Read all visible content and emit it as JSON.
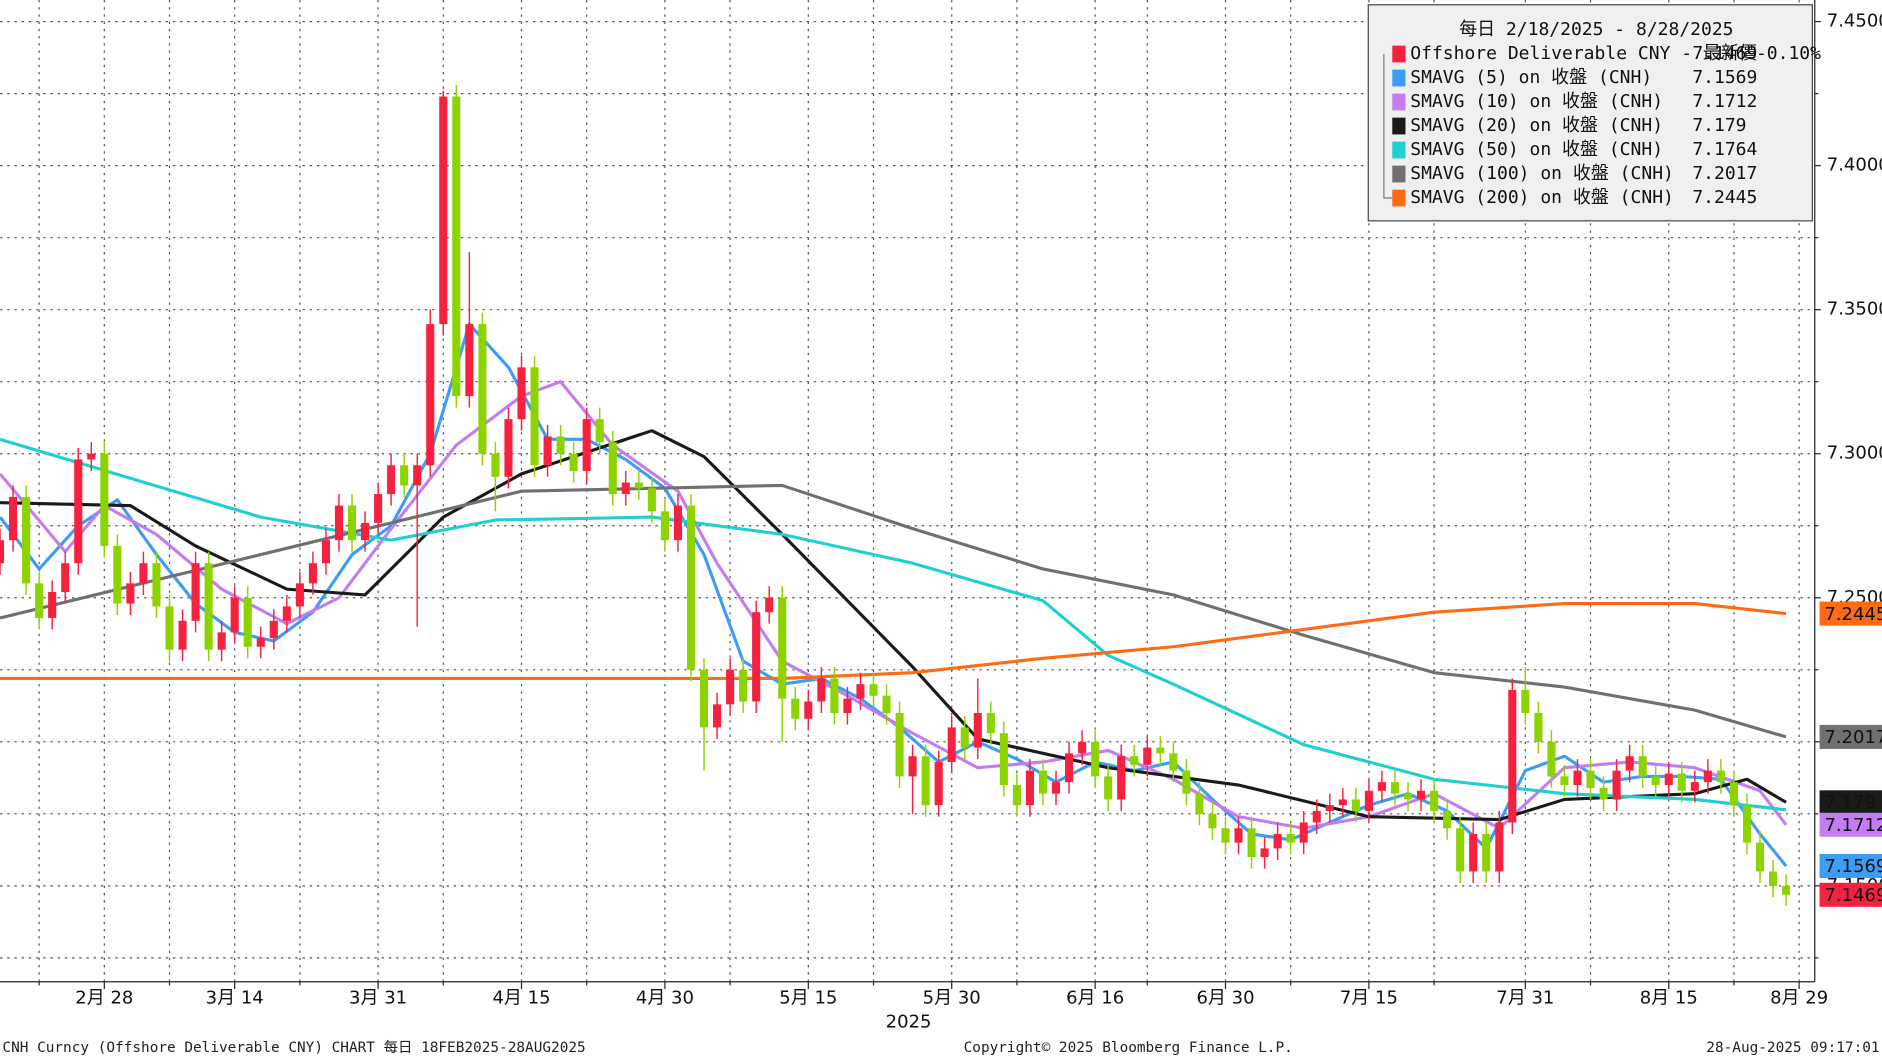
{
  "chart_data": {
    "type": "candlestick",
    "header": "每日 2/18/2025 - 8/28/2025",
    "x_label": "2025",
    "footer_left": "CNH Curncy (Offshore Deliverable CNY) CHART  每日 18FEB2025-28AUG2025",
    "footer_center": "Copyright© 2025 Bloomberg Finance L.P.",
    "footer_right": "28-Aug-2025 09:17:01",
    "grid": true,
    "legend": "top-right",
    "ylim": [
      7.1167,
      7.4575
    ],
    "yticks": [
      {
        "value": 7.45,
        "label": "7.4500"
      },
      {
        "value": 7.4,
        "label": "7.4000"
      },
      {
        "value": 7.35,
        "label": "7.3500"
      },
      {
        "value": 7.3,
        "label": "7.3000"
      },
      {
        "value": 7.25,
        "label": "7.2500"
      },
      {
        "value": 7.2,
        "label": "7.2000"
      },
      {
        "value": 7.15,
        "label": "7.1500"
      }
    ],
    "minor_yticks": [
      7.425,
      7.375,
      7.325,
      7.275,
      7.225,
      7.175,
      7.125
    ],
    "xlim": [
      0,
      139.2
    ],
    "xticks": [
      {
        "value": 8,
        "label": "2月 28"
      },
      {
        "value": 18,
        "label": "3月 14"
      },
      {
        "value": 29,
        "label": "3月 31"
      },
      {
        "value": 40,
        "label": "4月 15"
      },
      {
        "value": 51,
        "label": "4月 30"
      },
      {
        "value": 62,
        "label": "5月 15"
      },
      {
        "value": 73,
        "label": "5月 30"
      },
      {
        "value": 84,
        "label": "6月 16"
      },
      {
        "value": 94,
        "label": "6月 30"
      },
      {
        "value": 105,
        "label": "7月 15"
      },
      {
        "value": 117,
        "label": "7月 31"
      },
      {
        "value": 128,
        "label": "8月 15"
      },
      {
        "value": 138,
        "label": "8月 29"
      }
    ],
    "minor_xticks": [
      3,
      13,
      23,
      34,
      45,
      56,
      67,
      78,
      88,
      99,
      110,
      122,
      133
    ],
    "candles": {
      "name": "Offshore Deliverable CNY - 最新價",
      "color_up": "#f5213f",
      "color_down": "#8cd300",
      "last": 7.1469,
      "change": "-0.10%",
      "ohlc": [
        [
          7.262,
          7.274,
          7.258,
          7.27
        ],
        [
          7.27,
          7.289,
          7.266,
          7.285
        ],
        [
          7.285,
          7.289,
          7.251,
          7.255
        ],
        [
          7.255,
          7.259,
          7.239,
          7.243
        ],
        [
          7.243,
          7.256,
          7.239,
          7.252
        ],
        [
          7.252,
          7.266,
          7.248,
          7.262
        ],
        [
          7.262,
          7.302,
          7.258,
          7.298
        ],
        [
          7.298,
          7.304,
          7.294,
          7.3
        ],
        [
          7.3,
          7.304,
          7.264,
          7.268
        ],
        [
          7.268,
          7.272,
          7.244,
          7.248
        ],
        [
          7.248,
          7.259,
          7.244,
          7.255
        ],
        [
          7.255,
          7.266,
          7.251,
          7.262
        ],
        [
          7.262,
          7.266,
          7.243,
          7.247
        ],
        [
          7.247,
          7.251,
          7.228,
          7.232
        ],
        [
          7.232,
          7.246,
          7.228,
          7.242
        ],
        [
          7.242,
          7.266,
          7.238,
          7.262
        ],
        [
          7.262,
          7.266,
          7.228,
          7.232
        ],
        [
          7.232,
          7.242,
          7.228,
          7.238
        ],
        [
          7.238,
          7.254,
          7.234,
          7.25
        ],
        [
          7.25,
          7.254,
          7.229,
          7.233
        ],
        [
          7.233,
          7.24,
          7.229,
          7.236
        ],
        [
          7.236,
          7.246,
          7.232,
          7.242
        ],
        [
          7.242,
          7.251,
          7.238,
          7.247
        ],
        [
          7.247,
          7.259,
          7.243,
          7.255
        ],
        [
          7.255,
          7.266,
          7.251,
          7.262
        ],
        [
          7.262,
          7.274,
          7.258,
          7.27
        ],
        [
          7.27,
          7.286,
          7.266,
          7.282
        ],
        [
          7.282,
          7.286,
          7.266,
          7.27
        ],
        [
          7.27,
          7.28,
          7.266,
          7.276
        ],
        [
          7.276,
          7.29,
          7.272,
          7.286
        ],
        [
          7.286,
          7.3,
          7.282,
          7.296
        ],
        [
          7.296,
          7.3,
          7.285,
          7.289
        ],
        [
          7.289,
          7.3,
          7.24,
          7.296
        ],
        [
          7.296,
          7.35,
          7.292,
          7.345
        ],
        [
          7.345,
          7.426,
          7.341,
          7.424
        ],
        [
          7.424,
          7.428,
          7.316,
          7.32
        ],
        [
          7.32,
          7.37,
          7.316,
          7.345
        ],
        [
          7.345,
          7.349,
          7.296,
          7.3
        ],
        [
          7.3,
          7.304,
          7.28,
          7.292
        ],
        [
          7.292,
          7.316,
          7.288,
          7.312
        ],
        [
          7.312,
          7.334,
          7.308,
          7.33
        ],
        [
          7.33,
          7.334,
          7.292,
          7.296
        ],
        [
          7.296,
          7.31,
          7.292,
          7.306
        ],
        [
          7.306,
          7.31,
          7.296,
          7.3
        ],
        [
          7.3,
          7.304,
          7.29,
          7.294
        ],
        [
          7.294,
          7.316,
          7.29,
          7.312
        ],
        [
          7.312,
          7.316,
          7.3,
          7.304
        ],
        [
          7.304,
          7.308,
          7.282,
          7.286
        ],
        [
          7.286,
          7.294,
          7.282,
          7.29
        ],
        [
          7.29,
          7.294,
          7.284,
          7.288
        ],
        [
          7.288,
          7.292,
          7.276,
          7.28
        ],
        [
          7.28,
          7.284,
          7.266,
          7.27
        ],
        [
          7.27,
          7.286,
          7.266,
          7.282
        ],
        [
          7.282,
          7.286,
          7.221,
          7.225
        ],
        [
          7.225,
          7.229,
          7.19,
          7.205
        ],
        [
          7.205,
          7.217,
          7.201,
          7.213
        ],
        [
          7.213,
          7.229,
          7.209,
          7.225
        ],
        [
          7.225,
          7.229,
          7.21,
          7.214
        ],
        [
          7.214,
          7.249,
          7.21,
          7.245
        ],
        [
          7.245,
          7.254,
          7.241,
          7.25
        ],
        [
          7.25,
          7.254,
          7.2,
          7.215
        ],
        [
          7.215,
          7.219,
          7.204,
          7.208
        ],
        [
          7.208,
          7.218,
          7.204,
          7.214
        ],
        [
          7.214,
          7.226,
          7.21,
          7.222
        ],
        [
          7.222,
          7.226,
          7.206,
          7.21
        ],
        [
          7.21,
          7.219,
          7.206,
          7.215
        ],
        [
          7.215,
          7.224,
          7.211,
          7.22
        ],
        [
          7.22,
          7.224,
          7.212,
          7.216
        ],
        [
          7.216,
          7.22,
          7.206,
          7.21
        ],
        [
          7.21,
          7.214,
          7.184,
          7.188
        ],
        [
          7.188,
          7.199,
          7.175,
          7.195
        ],
        [
          7.195,
          7.199,
          7.174,
          7.178
        ],
        [
          7.178,
          7.197,
          7.174,
          7.193
        ],
        [
          7.193,
          7.209,
          7.189,
          7.205
        ],
        [
          7.205,
          7.209,
          7.194,
          7.198
        ],
        [
          7.198,
          7.222,
          7.194,
          7.21
        ],
        [
          7.21,
          7.214,
          7.199,
          7.203
        ],
        [
          7.203,
          7.207,
          7.181,
          7.185
        ],
        [
          7.185,
          7.189,
          7.174,
          7.178
        ],
        [
          7.178,
          7.194,
          7.174,
          7.19
        ],
        [
          7.19,
          7.194,
          7.178,
          7.182
        ],
        [
          7.182,
          7.19,
          7.178,
          7.186
        ],
        [
          7.186,
          7.2,
          7.182,
          7.196
        ],
        [
          7.196,
          7.204,
          7.192,
          7.2
        ],
        [
          7.2,
          7.204,
          7.184,
          7.188
        ],
        [
          7.188,
          7.192,
          7.176,
          7.18
        ],
        [
          7.18,
          7.199,
          7.176,
          7.195
        ],
        [
          7.195,
          7.199,
          7.188,
          7.192
        ],
        [
          7.192,
          7.202,
          7.188,
          7.198
        ],
        [
          7.198,
          7.202,
          7.192,
          7.196
        ],
        [
          7.196,
          7.2,
          7.186,
          7.19
        ],
        [
          7.19,
          7.194,
          7.178,
          7.182
        ],
        [
          7.182,
          7.186,
          7.171,
          7.175
        ],
        [
          7.175,
          7.179,
          7.166,
          7.17
        ],
        [
          7.17,
          7.174,
          7.161,
          7.165
        ],
        [
          7.165,
          7.174,
          7.161,
          7.17
        ],
        [
          7.17,
          7.174,
          7.156,
          7.16
        ],
        [
          7.16,
          7.167,
          7.156,
          7.163
        ],
        [
          7.163,
          7.172,
          7.159,
          7.168
        ],
        [
          7.168,
          7.172,
          7.161,
          7.165
        ],
        [
          7.165,
          7.176,
          7.161,
          7.172
        ],
        [
          7.172,
          7.18,
          7.168,
          7.176
        ],
        [
          7.176,
          7.182,
          7.172,
          7.178
        ],
        [
          7.178,
          7.184,
          7.174,
          7.18
        ],
        [
          7.18,
          7.184,
          7.172,
          7.176
        ],
        [
          7.176,
          7.187,
          7.172,
          7.183
        ],
        [
          7.183,
          7.19,
          7.179,
          7.186
        ],
        [
          7.186,
          7.19,
          7.178,
          7.182
        ],
        [
          7.182,
          7.186,
          7.176,
          7.18
        ],
        [
          7.18,
          7.187,
          7.176,
          7.183
        ],
        [
          7.183,
          7.187,
          7.172,
          7.176
        ],
        [
          7.176,
          7.18,
          7.166,
          7.17
        ],
        [
          7.17,
          7.174,
          7.151,
          7.155
        ],
        [
          7.155,
          7.172,
          7.151,
          7.168
        ],
        [
          7.168,
          7.172,
          7.151,
          7.155
        ],
        [
          7.155,
          7.176,
          7.151,
          7.172
        ],
        [
          7.172,
          7.222,
          7.168,
          7.218
        ],
        [
          7.218,
          7.226,
          7.206,
          7.21
        ],
        [
          7.21,
          7.214,
          7.196,
          7.2
        ],
        [
          7.2,
          7.204,
          7.184,
          7.188
        ],
        [
          7.188,
          7.192,
          7.181,
          7.185
        ],
        [
          7.185,
          7.194,
          7.181,
          7.19
        ],
        [
          7.19,
          7.194,
          7.18,
          7.184
        ],
        [
          7.184,
          7.188,
          7.176,
          7.18
        ],
        [
          7.18,
          7.194,
          7.176,
          7.19
        ],
        [
          7.19,
          7.199,
          7.186,
          7.195
        ],
        [
          7.195,
          7.199,
          7.184,
          7.188
        ],
        [
          7.188,
          7.192,
          7.181,
          7.185
        ],
        [
          7.185,
          7.193,
          7.181,
          7.189
        ],
        [
          7.189,
          7.193,
          7.179,
          7.183
        ],
        [
          7.183,
          7.19,
          7.179,
          7.186
        ],
        [
          7.186,
          7.194,
          7.182,
          7.19
        ],
        [
          7.19,
          7.194,
          7.182,
          7.186
        ],
        [
          7.186,
          7.19,
          7.174,
          7.178
        ],
        [
          7.178,
          7.182,
          7.161,
          7.165
        ],
        [
          7.165,
          7.169,
          7.151,
          7.155
        ],
        [
          7.155,
          7.159,
          7.146,
          7.15
        ],
        [
          7.15,
          7.154,
          7.143,
          7.1469
        ]
      ]
    },
    "series": [
      {
        "name": "SMAVG (5)  on 收盤 (CNH)",
        "color": "#3d9cf5",
        "last": 7.1569,
        "x": [
          0,
          3,
          6,
          9,
          12,
          15,
          18,
          21,
          24,
          27,
          30,
          33,
          36,
          39,
          42,
          45,
          48,
          51,
          54,
          57,
          60,
          63,
          66,
          69,
          72,
          75,
          78,
          81,
          84,
          87,
          90,
          93,
          96,
          99,
          102,
          105,
          108,
          111,
          114,
          117,
          120,
          123,
          126,
          129,
          132,
          135,
          137
        ],
        "values": [
          7.278,
          7.26,
          7.275,
          7.284,
          7.265,
          7.248,
          7.238,
          7.235,
          7.245,
          7.265,
          7.275,
          7.3,
          7.345,
          7.33,
          7.305,
          7.305,
          7.298,
          7.288,
          7.265,
          7.228,
          7.22,
          7.222,
          7.215,
          7.205,
          7.193,
          7.2,
          7.194,
          7.186,
          7.193,
          7.19,
          7.193,
          7.18,
          7.168,
          7.166,
          7.172,
          7.178,
          7.182,
          7.176,
          7.163,
          7.19,
          7.195,
          7.186,
          7.188,
          7.188,
          7.187,
          7.168,
          7.1569
        ]
      },
      {
        "name": "SMAVG (10)  on 收盤 (CNH)",
        "color": "#c47cf2",
        "last": 7.1712,
        "x": [
          0,
          5,
          8,
          12,
          17,
          22,
          26,
          30,
          35,
          40,
          43,
          47,
          52,
          55,
          60,
          65,
          70,
          75,
          80,
          85,
          90,
          95,
          100,
          105,
          110,
          115,
          120,
          125,
          130,
          135,
          137
        ],
        "values": [
          7.293,
          7.266,
          7.282,
          7.272,
          7.253,
          7.241,
          7.25,
          7.274,
          7.303,
          7.32,
          7.325,
          7.303,
          7.287,
          7.262,
          7.228,
          7.216,
          7.203,
          7.191,
          7.193,
          7.197,
          7.187,
          7.174,
          7.17,
          7.174,
          7.182,
          7.17,
          7.191,
          7.193,
          7.191,
          7.183,
          7.1712
        ]
      },
      {
        "name": "SMAVG (20)  on 收盤 (CNH)",
        "color": "#1a1a1a",
        "last": 7.179,
        "x": [
          0,
          10,
          15,
          22,
          28,
          34,
          40,
          50,
          54,
          60,
          70,
          75,
          85,
          95,
          105,
          115,
          120,
          130,
          134,
          137
        ],
        "values": [
          7.283,
          7.282,
          7.268,
          7.253,
          7.251,
          7.278,
          7.293,
          7.308,
          7.299,
          7.272,
          7.226,
          7.201,
          7.191,
          7.185,
          7.174,
          7.173,
          7.18,
          7.182,
          7.187,
          7.179
        ]
      },
      {
        "name": "SMAVG (50)  on 收盤 (CNH)",
        "color": "#1fcfd2",
        "last": 7.1764,
        "x": [
          0,
          20,
          30,
          38,
          50,
          60,
          70,
          80,
          85,
          90,
          100,
          110,
          120,
          130,
          137
        ],
        "values": [
          7.305,
          7.278,
          7.27,
          7.277,
          7.278,
          7.272,
          7.262,
          7.249,
          7.23,
          7.22,
          7.199,
          7.187,
          7.182,
          7.18,
          7.1764
        ]
      },
      {
        "name": "SMAVG (100)  on 收盤 (CNH)",
        "color": "#707070",
        "last": 7.2017,
        "x": [
          0,
          20,
          40,
          60,
          70,
          80,
          90,
          100,
          110,
          120,
          130,
          137
        ],
        "values": [
          7.243,
          7.265,
          7.287,
          7.289,
          7.274,
          7.26,
          7.251,
          7.237,
          7.224,
          7.219,
          7.211,
          7.2017
        ]
      },
      {
        "name": "SMAVG (200)  on 收盤 (CNH)",
        "color": "#ff6a13",
        "last": 7.2445,
        "x": [
          0,
          20,
          40,
          60,
          70,
          80,
          90,
          100,
          110,
          120,
          130,
          137
        ],
        "values": [
          7.222,
          7.222,
          7.222,
          7.222,
          7.224,
          7.229,
          7.233,
          7.239,
          7.245,
          7.248,
          7.248,
          7.2445
        ]
      }
    ]
  }
}
